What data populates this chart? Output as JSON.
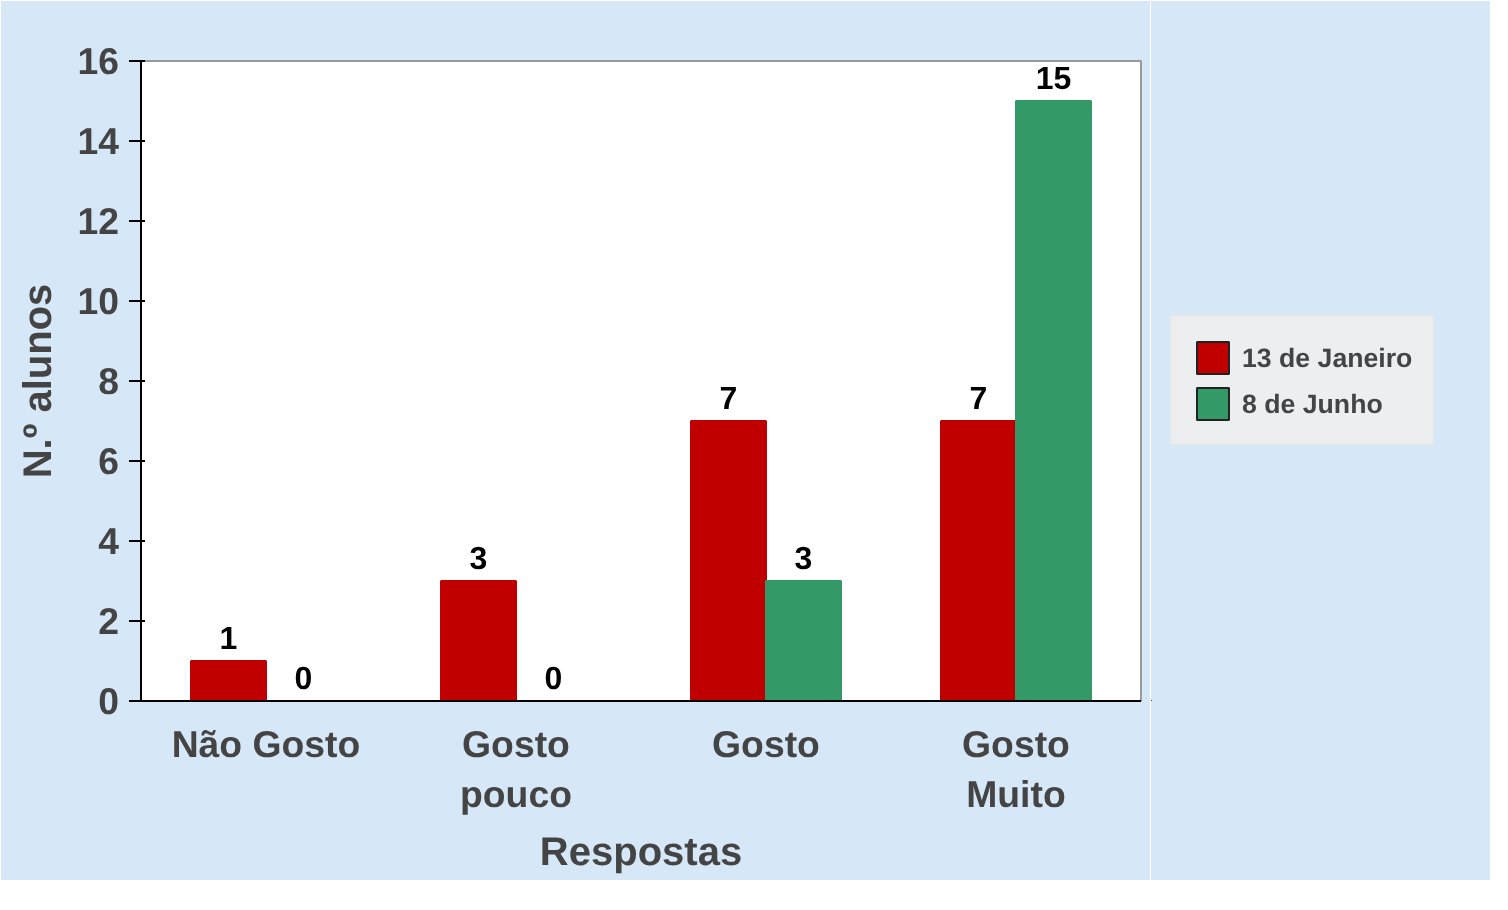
{
  "chart_data": {
    "type": "bar",
    "categories": [
      "Não Gosto",
      "Gosto\npouco",
      "Gosto",
      "Gosto\nMuito"
    ],
    "series": [
      {
        "name": "13 de Janeiro",
        "color": "#c00000",
        "values": [
          1,
          3,
          7,
          7
        ]
      },
      {
        "name": "8 de Junho",
        "color": "#339966",
        "values": [
          0,
          0,
          3,
          15
        ]
      }
    ],
    "ylabel": "N.º alunos",
    "xlabel": "Respostas",
    "ylim": [
      0,
      16
    ],
    "yticks": [
      0,
      2,
      4,
      6,
      8,
      10,
      12,
      14,
      16
    ],
    "data_labels": true,
    "legend": "right",
    "grid": false
  }
}
